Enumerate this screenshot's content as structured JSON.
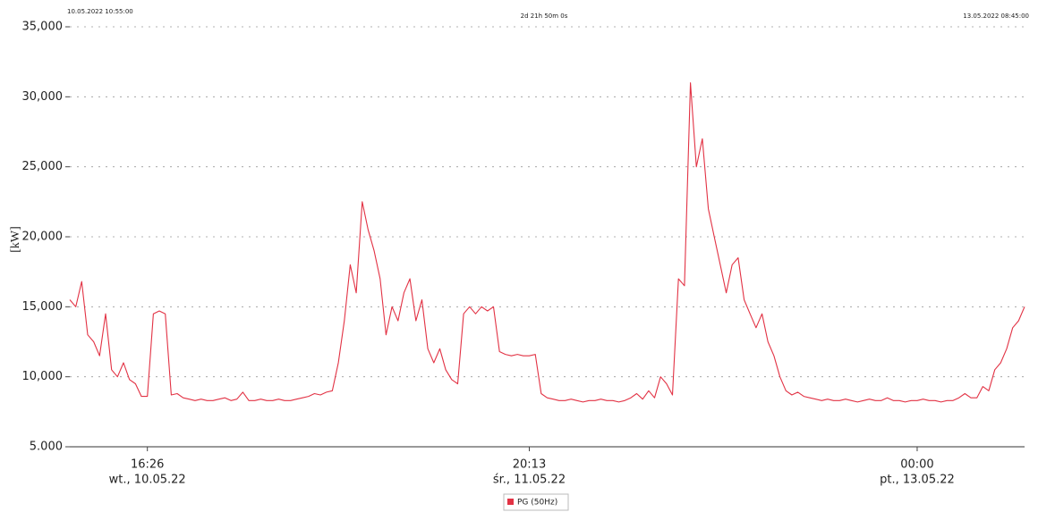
{
  "chart_data": {
    "type": "line",
    "header_left": "10.05.2022 10:55:00",
    "header_center": "2d 21h 50m 0s",
    "header_right": "13.05.2022 08:45:00",
    "y_label": "[kW]",
    "ylim": [
      5000,
      35000
    ],
    "yticks": [
      {
        "value": 5000,
        "label": "5.000"
      },
      {
        "value": 10000,
        "label": "10,000"
      },
      {
        "value": 15000,
        "label": "15,000"
      },
      {
        "value": 20000,
        "label": "20,000"
      },
      {
        "value": 25000,
        "label": "25,000"
      },
      {
        "value": 30000,
        "label": "30,000"
      },
      {
        "value": 35000,
        "label": "35,000"
      }
    ],
    "xlim": [
      0,
      160
    ],
    "xticks": [
      {
        "value": 13,
        "label": "16:26"
      },
      {
        "value": 77,
        "label": "20:13"
      },
      {
        "value": 142,
        "label": "00:00"
      }
    ],
    "xtick_dates": [
      "wt., 10.05.22",
      "śr., 11.05.22",
      "pt., 13.05.22"
    ],
    "grid": true,
    "legend": "bottom",
    "series": [
      {
        "name": "PG (50Hz)",
        "color": "#e23244",
        "values": [
          15500,
          15000,
          16800,
          13000,
          12500,
          11500,
          14500,
          10500,
          10000,
          11000,
          9800,
          9500,
          8600,
          8600,
          14500,
          14700,
          14500,
          8700,
          8800,
          8500,
          8400,
          8300,
          8400,
          8300,
          8300,
          8400,
          8500,
          8300,
          8400,
          8900,
          8300,
          8300,
          8400,
          8300,
          8300,
          8400,
          8300,
          8300,
          8400,
          8500,
          8600,
          8800,
          8700,
          8900,
          9000,
          11000,
          14000,
          18000,
          16000,
          22500,
          20500,
          19000,
          17000,
          13000,
          15000,
          14000,
          16000,
          17000,
          14000,
          15500,
          12000,
          11000,
          12000,
          10500,
          9800,
          9500,
          14500,
          15000,
          14500,
          15000,
          14700,
          15000,
          11800,
          11600,
          11500,
          11600,
          11500,
          11500,
          11600,
          8800,
          8500,
          8400,
          8300,
          8300,
          8400,
          8300,
          8200,
          8300,
          8300,
          8400,
          8300,
          8300,
          8200,
          8300,
          8500,
          8800,
          8400,
          9000,
          8500,
          10000,
          9500,
          8700,
          17000,
          16500,
          31000,
          25000,
          27000,
          22000,
          20000,
          18000,
          16000,
          18000,
          18500,
          15500,
          14500,
          13500,
          14500,
          12500,
          11500,
          10000,
          9000,
          8700,
          8900,
          8600,
          8500,
          8400,
          8300,
          8400,
          8300,
          8300,
          8400,
          8300,
          8200,
          8300,
          8400,
          8300,
          8300,
          8500,
          8300,
          8300,
          8200,
          8300,
          8300,
          8400,
          8300,
          8300,
          8200,
          8300,
          8300,
          8500,
          8800,
          8500,
          8500,
          9300,
          9000,
          10500,
          11000,
          12000,
          13500,
          14000,
          15000
        ]
      }
    ]
  }
}
